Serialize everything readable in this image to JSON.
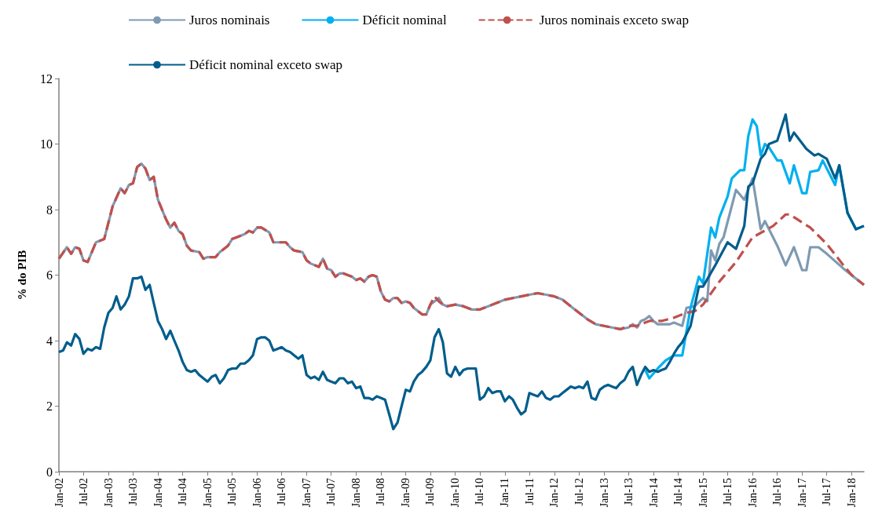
{
  "chart_data": {
    "type": "line",
    "ylabel": "% do PIB",
    "legend": "top",
    "grid": false,
    "marker": "none",
    "line_style": "solid",
    "xlim": [
      "2002-01",
      "2018-04"
    ],
    "ylim": [
      0,
      12
    ],
    "yticks": [
      0,
      2,
      4,
      6,
      8,
      10,
      12
    ],
    "xticks": [
      {
        "value": "2002-01",
        "label": "Jan-02"
      },
      {
        "value": "2002-07",
        "label": "Jul-02"
      },
      {
        "value": "2003-01",
        "label": "Jan-03"
      },
      {
        "value": "2003-07",
        "label": "Jul-03"
      },
      {
        "value": "2004-01",
        "label": "Jan-04"
      },
      {
        "value": "2004-07",
        "label": "Jul-04"
      },
      {
        "value": "2005-01",
        "label": "Jan-05"
      },
      {
        "value": "2005-07",
        "label": "Jul-05"
      },
      {
        "value": "2006-01",
        "label": "Jan-06"
      },
      {
        "value": "2006-07",
        "label": "Jul-06"
      },
      {
        "value": "2007-01",
        "label": "Jan-07"
      },
      {
        "value": "2007-07",
        "label": "Jul-07"
      },
      {
        "value": "2008-01",
        "label": "Jan-08"
      },
      {
        "value": "2008-07",
        "label": "Jul-08"
      },
      {
        "value": "2009-01",
        "label": "Jan-09"
      },
      {
        "value": "2009-07",
        "label": "Jul-09"
      },
      {
        "value": "2010-01",
        "label": "Jan-10"
      },
      {
        "value": "2010-07",
        "label": "Jul-10"
      },
      {
        "value": "2011-01",
        "label": "Jan-11"
      },
      {
        "value": "2011-07",
        "label": "Jul-11"
      },
      {
        "value": "2012-01",
        "label": "Jan-12"
      },
      {
        "value": "2012-07",
        "label": "Jul-12"
      },
      {
        "value": "2013-01",
        "label": "Jan-13"
      },
      {
        "value": "2013-07",
        "label": "Jul-13"
      },
      {
        "value": "2014-01",
        "label": "Jan-14"
      },
      {
        "value": "2014-07",
        "label": "Jul-14"
      },
      {
        "value": "2015-01",
        "label": "Jan-15"
      },
      {
        "value": "2015-07",
        "label": "Jul-15"
      },
      {
        "value": "2016-01",
        "label": "Jan-16"
      },
      {
        "value": "2016-07",
        "label": "Jul-16"
      },
      {
        "value": "2017-01",
        "label": "Jan-17"
      },
      {
        "value": "2017-07",
        "label": "Jul-17"
      },
      {
        "value": "2018-01",
        "label": "Jan-18"
      }
    ],
    "series": [
      {
        "name": "Juros nominais",
        "color": "#7f9ab2",
        "x": [
          "2002-01",
          "2002-03",
          "2002-04",
          "2002-05",
          "2002-06",
          "2002-07",
          "2002-08",
          "2002-10",
          "2002-12",
          "2003-01",
          "2003-02",
          "2003-04",
          "2003-05",
          "2003-06",
          "2003-07",
          "2003-08",
          "2003-09",
          "2003-10",
          "2003-11",
          "2003-12",
          "2004-01",
          "2004-03",
          "2004-04",
          "2004-05",
          "2004-06",
          "2004-07",
          "2004-08",
          "2004-09",
          "2004-11",
          "2004-12",
          "2005-01",
          "2005-03",
          "2005-04",
          "2005-06",
          "2005-07",
          "2005-08",
          "2005-10",
          "2005-11",
          "2005-12",
          "2006-01",
          "2006-02",
          "2006-04",
          "2006-05",
          "2006-08",
          "2006-09",
          "2006-10",
          "2006-12",
          "2007-01",
          "2007-02",
          "2007-04",
          "2007-05",
          "2007-06",
          "2007-07",
          "2007-08",
          "2007-09",
          "2007-10",
          "2007-12",
          "2008-01",
          "2008-02",
          "2008-03",
          "2008-04",
          "2008-05",
          "2008-06",
          "2008-07",
          "2008-08",
          "2008-09",
          "2008-10",
          "2008-11",
          "2008-12",
          "2009-01",
          "2009-02",
          "2009-03",
          "2009-04",
          "2009-05",
          "2009-06",
          "2009-07",
          "2009-08",
          "2009-09",
          "2009-10",
          "2009-11",
          "2010-01",
          "2010-03",
          "2010-05",
          "2010-07",
          "2010-09",
          "2010-11",
          "2011-01",
          "2011-03",
          "2011-05",
          "2011-07",
          "2011-09",
          "2011-11",
          "2012-01",
          "2012-03",
          "2012-05",
          "2012-07",
          "2012-09",
          "2012-11",
          "2013-01",
          "2013-03",
          "2013-05",
          "2013-07",
          "2013-08",
          "2013-09",
          "2013-10",
          "2013-11",
          "2013-12",
          "2014-01",
          "2014-02",
          "2014-05",
          "2014-06",
          "2014-07",
          "2014-08",
          "2014-09",
          "2014-11",
          "2015-01",
          "2015-02",
          "2015-03",
          "2015-04",
          "2015-05",
          "2015-06",
          "2015-09",
          "2015-11",
          "2016-01",
          "2016-03",
          "2016-04",
          "2016-07",
          "2016-09",
          "2016-11",
          "2017-01",
          "2017-02",
          "2017-03",
          "2017-05",
          "2017-07",
          "2017-11",
          "2018-04"
        ],
        "values": [
          6.5,
          6.85,
          6.65,
          6.85,
          6.8,
          6.45,
          6.4,
          7.0,
          7.1,
          7.6,
          8.1,
          8.65,
          8.5,
          8.75,
          8.8,
          9.3,
          9.4,
          9.25,
          8.9,
          9.0,
          8.3,
          7.7,
          7.45,
          7.6,
          7.35,
          7.25,
          6.9,
          6.75,
          6.7,
          6.5,
          6.55,
          6.55,
          6.7,
          6.9,
          7.1,
          7.15,
          7.25,
          7.35,
          7.3,
          7.45,
          7.45,
          7.3,
          7.0,
          7.0,
          6.85,
          6.75,
          6.7,
          6.45,
          6.35,
          6.25,
          6.5,
          6.2,
          6.15,
          5.95,
          6.05,
          6.05,
          5.95,
          5.85,
          5.9,
          5.8,
          5.95,
          6.0,
          5.95,
          5.5,
          5.25,
          5.2,
          5.3,
          5.3,
          5.15,
          5.2,
          5.15,
          5.0,
          4.9,
          4.8,
          4.8,
          5.1,
          5.2,
          5.3,
          5.1,
          5.05,
          5.1,
          5.05,
          4.95,
          4.95,
          5.05,
          5.15,
          5.25,
          5.3,
          5.35,
          5.4,
          5.45,
          5.4,
          5.35,
          5.25,
          5.05,
          4.85,
          4.65,
          4.5,
          4.45,
          4.4,
          4.35,
          4.4,
          4.5,
          4.4,
          4.6,
          4.65,
          4.75,
          4.6,
          4.5,
          4.5,
          4.55,
          4.5,
          4.45,
          5.0,
          5.05,
          5.3,
          5.2,
          6.75,
          6.45,
          6.95,
          7.15,
          8.6,
          8.3,
          8.95,
          7.4,
          7.65,
          6.9,
          6.3,
          6.85,
          6.15,
          6.15,
          6.85,
          6.85,
          6.65,
          6.2,
          5.7
        ]
      },
      {
        "name": "Déficit nominal",
        "color": "#00b0f0",
        "x": [
          "2013-11",
          "2013-12",
          "2014-02",
          "2014-04",
          "2014-06",
          "2014-08",
          "2014-10",
          "2014-12",
          "2015-01",
          "2015-03",
          "2015-04",
          "2015-05",
          "2015-07",
          "2015-08",
          "2015-10",
          "2015-11",
          "2015-12",
          "2016-01",
          "2016-02",
          "2016-03",
          "2016-04",
          "2016-05",
          "2016-07",
          "2016-08",
          "2016-10",
          "2016-11",
          "2017-01",
          "2017-02",
          "2017-03",
          "2017-05",
          "2017-06",
          "2017-09",
          "2017-10",
          "2017-12",
          "2018-02",
          "2018-04"
        ],
        "values": [
          3.1,
          2.85,
          3.15,
          3.4,
          3.55,
          3.55,
          5.0,
          5.95,
          5.75,
          7.45,
          7.15,
          7.75,
          8.4,
          8.95,
          9.2,
          9.2,
          10.25,
          10.75,
          10.55,
          9.65,
          10.0,
          9.9,
          9.5,
          9.5,
          8.8,
          9.35,
          8.5,
          8.5,
          9.15,
          9.2,
          9.5,
          8.75,
          9.35,
          7.9,
          7.4,
          7.5
        ]
      },
      {
        "name": "Juros nominais exceto swap",
        "color": "#c0504d",
        "line_style": "dashed",
        "x": [
          "2002-01",
          "2002-03",
          "2002-04",
          "2002-05",
          "2002-06",
          "2002-07",
          "2002-08",
          "2002-10",
          "2002-12",
          "2003-01",
          "2003-02",
          "2003-04",
          "2003-05",
          "2003-06",
          "2003-07",
          "2003-08",
          "2003-09",
          "2003-10",
          "2003-11",
          "2003-12",
          "2004-01",
          "2004-03",
          "2004-04",
          "2004-05",
          "2004-06",
          "2004-07",
          "2004-08",
          "2004-09",
          "2004-11",
          "2004-12",
          "2005-01",
          "2005-03",
          "2005-04",
          "2005-06",
          "2005-07",
          "2005-08",
          "2005-10",
          "2005-11",
          "2005-12",
          "2006-01",
          "2006-02",
          "2006-04",
          "2006-05",
          "2006-08",
          "2006-09",
          "2006-10",
          "2006-12",
          "2007-01",
          "2007-02",
          "2007-04",
          "2007-05",
          "2007-06",
          "2007-07",
          "2007-08",
          "2007-09",
          "2007-10",
          "2007-12",
          "2008-01",
          "2008-02",
          "2008-03",
          "2008-04",
          "2008-05",
          "2008-06",
          "2008-07",
          "2008-08",
          "2008-09",
          "2008-10",
          "2008-11",
          "2008-12",
          "2009-01",
          "2009-02",
          "2009-03",
          "2009-04",
          "2009-05",
          "2009-06",
          "2009-07",
          "2009-08",
          "2009-09",
          "2009-10",
          "2009-11",
          "2010-01",
          "2010-03",
          "2010-05",
          "2010-07",
          "2010-09",
          "2010-11",
          "2011-01",
          "2011-03",
          "2011-05",
          "2011-07",
          "2011-09",
          "2011-11",
          "2012-01",
          "2012-03",
          "2012-05",
          "2012-07",
          "2012-09",
          "2012-11",
          "2013-01",
          "2013-03",
          "2013-05",
          "2013-07",
          "2013-09",
          "2013-12",
          "2014-03",
          "2014-06",
          "2014-09",
          "2014-11",
          "2015-01",
          "2015-05",
          "2015-09",
          "2016-01",
          "2016-06",
          "2016-09",
          "2016-10",
          "2017-03",
          "2017-07",
          "2017-11",
          "2018-01",
          "2018-04"
        ],
        "values": [
          6.5,
          6.85,
          6.65,
          6.85,
          6.8,
          6.45,
          6.4,
          7.0,
          7.1,
          7.6,
          8.1,
          8.65,
          8.5,
          8.75,
          8.8,
          9.3,
          9.4,
          9.25,
          8.9,
          9.0,
          8.3,
          7.7,
          7.45,
          7.6,
          7.35,
          7.25,
          6.9,
          6.75,
          6.7,
          6.5,
          6.55,
          6.55,
          6.7,
          6.9,
          7.1,
          7.15,
          7.25,
          7.35,
          7.3,
          7.45,
          7.45,
          7.3,
          7.0,
          7.0,
          6.85,
          6.75,
          6.7,
          6.45,
          6.35,
          6.25,
          6.5,
          6.2,
          6.15,
          5.95,
          6.05,
          6.05,
          5.95,
          5.85,
          5.9,
          5.8,
          5.95,
          6.0,
          5.95,
          5.5,
          5.25,
          5.2,
          5.3,
          5.3,
          5.15,
          5.2,
          5.15,
          5.0,
          4.9,
          4.8,
          4.8,
          5.1,
          5.35,
          5.2,
          5.1,
          5.05,
          5.1,
          5.05,
          4.95,
          4.95,
          5.05,
          5.15,
          5.25,
          5.3,
          5.35,
          5.4,
          5.45,
          5.4,
          5.35,
          5.25,
          5.05,
          4.85,
          4.65,
          4.5,
          4.45,
          4.4,
          4.35,
          4.45,
          4.45,
          4.6,
          4.6,
          4.7,
          4.85,
          4.9,
          5.1,
          5.8,
          6.4,
          7.15,
          7.5,
          7.85,
          7.85,
          7.45,
          6.95,
          6.3,
          6.0,
          5.7
        ]
      },
      {
        "name": "Déficit nominal exceto swap",
        "color": "#005d8c",
        "x": [
          "2002-01",
          "2002-02",
          "2002-03",
          "2002-04",
          "2002-05",
          "2002-06",
          "2002-07",
          "2002-08",
          "2002-09",
          "2002-10",
          "2002-11",
          "2002-12",
          "2003-01",
          "2003-02",
          "2003-03",
          "2003-04",
          "2003-05",
          "2003-06",
          "2003-07",
          "2003-08",
          "2003-09",
          "2003-10",
          "2003-11",
          "2003-12",
          "2004-01",
          "2004-02",
          "2004-03",
          "2004-04",
          "2004-05",
          "2004-06",
          "2004-07",
          "2004-08",
          "2004-09",
          "2004-10",
          "2004-11",
          "2004-12",
          "2005-01",
          "2005-02",
          "2005-03",
          "2005-04",
          "2005-05",
          "2005-06",
          "2005-07",
          "2005-08",
          "2005-09",
          "2005-10",
          "2005-11",
          "2005-12",
          "2006-01",
          "2006-02",
          "2006-03",
          "2006-04",
          "2006-05",
          "2006-06",
          "2006-07",
          "2006-08",
          "2006-09",
          "2006-10",
          "2006-11",
          "2006-12",
          "2007-01",
          "2007-02",
          "2007-03",
          "2007-04",
          "2007-05",
          "2007-06",
          "2007-07",
          "2007-08",
          "2007-09",
          "2007-10",
          "2007-11",
          "2007-12",
          "2008-01",
          "2008-02",
          "2008-03",
          "2008-04",
          "2008-05",
          "2008-06",
          "2008-07",
          "2008-08",
          "2008-09",
          "2008-10",
          "2008-11",
          "2008-12",
          "2009-01",
          "2009-02",
          "2009-03",
          "2009-04",
          "2009-05",
          "2009-06",
          "2009-07",
          "2009-08",
          "2009-09",
          "2009-10",
          "2009-11",
          "2009-12",
          "2010-01",
          "2010-02",
          "2010-03",
          "2010-04",
          "2010-06",
          "2010-07",
          "2010-08",
          "2010-09",
          "2010-10",
          "2010-11",
          "2010-12",
          "2011-01",
          "2011-02",
          "2011-03",
          "2011-04",
          "2011-05",
          "2011-06",
          "2011-07",
          "2011-08",
          "2011-09",
          "2011-10",
          "2011-11",
          "2011-12",
          "2012-01",
          "2012-02",
          "2012-03",
          "2012-04",
          "2012-05",
          "2012-06",
          "2012-07",
          "2012-08",
          "2012-09",
          "2012-10",
          "2012-11",
          "2012-12",
          "2013-01",
          "2013-02",
          "2013-03",
          "2013-04",
          "2013-05",
          "2013-06",
          "2013-07",
          "2013-08",
          "2013-09",
          "2013-10",
          "2013-11",
          "2013-12",
          "2014-01",
          "2014-02",
          "2014-03",
          "2014-04",
          "2014-05",
          "2014-06",
          "2014-07",
          "2014-08",
          "2014-09",
          "2014-10",
          "2014-12",
          "2015-01",
          "2015-04",
          "2015-07",
          "2015-09",
          "2015-11",
          "2015-12",
          "2016-01",
          "2016-03",
          "2016-04",
          "2016-05",
          "2016-07",
          "2016-09",
          "2016-10",
          "2016-11",
          "2017-02",
          "2017-04",
          "2017-05",
          "2017-07",
          "2017-09",
          "2017-10",
          "2017-12",
          "2018-02",
          "2018-04"
        ],
        "values": [
          3.65,
          3.7,
          3.95,
          3.85,
          4.2,
          4.05,
          3.6,
          3.75,
          3.7,
          3.8,
          3.75,
          4.4,
          4.85,
          5.0,
          5.35,
          4.95,
          5.1,
          5.35,
          5.9,
          5.9,
          5.95,
          5.55,
          5.7,
          5.15,
          4.6,
          4.35,
          4.05,
          4.3,
          4.0,
          3.7,
          3.35,
          3.1,
          3.05,
          3.1,
          2.95,
          2.85,
          2.75,
          2.9,
          2.95,
          2.7,
          2.85,
          3.1,
          3.15,
          3.15,
          3.3,
          3.3,
          3.4,
          3.55,
          4.05,
          4.1,
          4.1,
          4.0,
          3.7,
          3.75,
          3.8,
          3.7,
          3.65,
          3.55,
          3.45,
          3.55,
          2.95,
          2.85,
          2.9,
          2.8,
          3.05,
          2.8,
          2.75,
          2.7,
          2.85,
          2.85,
          2.7,
          2.75,
          2.55,
          2.6,
          2.25,
          2.25,
          2.2,
          2.3,
          2.25,
          2.2,
          1.75,
          1.3,
          1.5,
          2.0,
          2.5,
          2.45,
          2.75,
          2.95,
          3.05,
          3.2,
          3.4,
          4.1,
          4.35,
          3.95,
          3.0,
          2.9,
          3.2,
          2.95,
          3.1,
          3.15,
          3.15,
          2.2,
          2.3,
          2.55,
          2.4,
          2.45,
          2.45,
          2.15,
          2.3,
          2.2,
          1.95,
          1.75,
          1.85,
          2.4,
          2.35,
          2.3,
          2.45,
          2.25,
          2.2,
          2.3,
          2.3,
          2.4,
          2.5,
          2.6,
          2.55,
          2.6,
          2.55,
          2.75,
          2.25,
          2.2,
          2.5,
          2.6,
          2.65,
          2.6,
          2.55,
          2.7,
          2.8,
          3.05,
          3.2,
          2.65,
          2.95,
          3.2,
          3.05,
          3.1,
          3.05,
          3.1,
          3.15,
          3.35,
          3.6,
          3.8,
          3.95,
          4.2,
          4.45,
          5.65,
          5.65,
          6.3,
          7.0,
          6.8,
          7.5,
          8.7,
          8.8,
          9.55,
          9.7,
          10.0,
          10.1,
          10.9,
          10.1,
          10.35,
          9.85,
          9.65,
          9.7,
          9.55,
          8.95,
          9.35,
          7.9,
          7.4,
          7.5
        ]
      }
    ]
  }
}
